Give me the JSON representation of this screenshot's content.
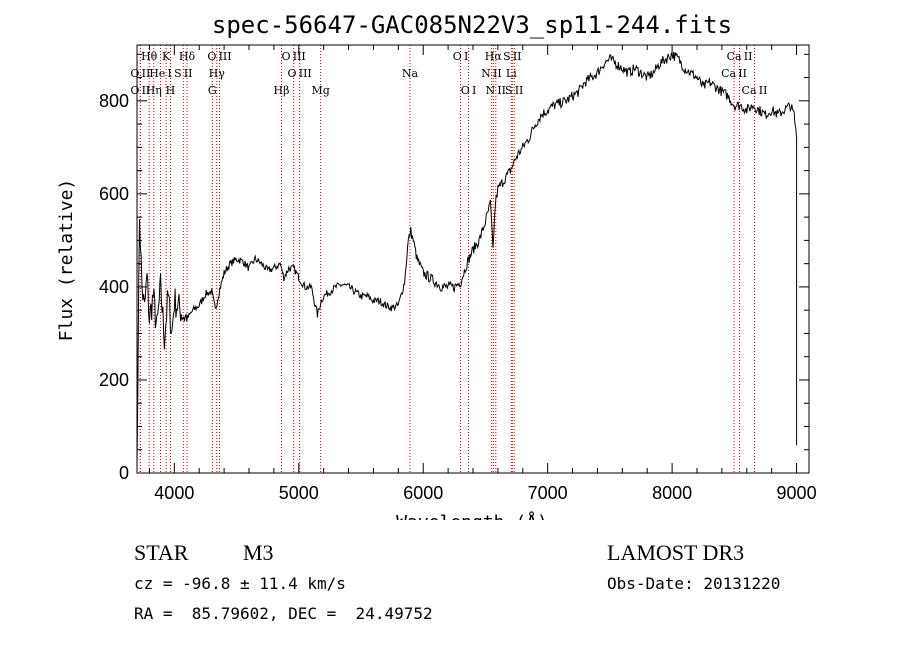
{
  "chart_data": {
    "type": "line",
    "title": "spec-56647-GAC085N22V3_sp11-244.fits",
    "xlabel": "Wavelength (Å)",
    "ylabel": "Flux (relative)",
    "xlim": [
      3700,
      9100
    ],
    "ylim": [
      0,
      920
    ],
    "x_ticks": [
      4000,
      5000,
      6000,
      7000,
      8000,
      9000
    ],
    "y_ticks": [
      0,
      200,
      400,
      600,
      800
    ],
    "series": [
      {
        "name": "spectrum",
        "x": [
          3700,
          3720,
          3740,
          3760,
          3780,
          3800,
          3830,
          3860,
          3890,
          3920,
          3950,
          3980,
          4000,
          4050,
          4100,
          4150,
          4200,
          4250,
          4300,
          4330,
          4360,
          4400,
          4450,
          4500,
          4550,
          4600,
          4650,
          4700,
          4750,
          4800,
          4850,
          4880,
          4920,
          4960,
          5000,
          5050,
          5100,
          5150,
          5180,
          5200,
          5250,
          5300,
          5350,
          5400,
          5450,
          5500,
          5550,
          5600,
          5650,
          5700,
          5750,
          5800,
          5850,
          5880,
          5900,
          5920,
          5950,
          6000,
          6050,
          6100,
          6150,
          6200,
          6250,
          6300,
          6350,
          6400,
          6450,
          6500,
          6540,
          6560,
          6580,
          6600,
          6650,
          6700,
          6750,
          6800,
          6850,
          6900,
          6950,
          7000,
          7050,
          7100,
          7150,
          7200,
          7250,
          7300,
          7350,
          7400,
          7450,
          7500,
          7550,
          7600,
          7650,
          7700,
          7750,
          7800,
          7850,
          7900,
          7950,
          8000,
          8050,
          8100,
          8150,
          8200,
          8250,
          8300,
          8350,
          8400,
          8450,
          8500,
          8550,
          8600,
          8650,
          8700,
          8750,
          8800,
          8850,
          8900,
          8950,
          8980,
          9000
        ],
        "values": [
          20,
          560,
          400,
          350,
          420,
          330,
          380,
          310,
          400,
          290,
          380,
          300,
          370,
          350,
          330,
          350,
          360,
          385,
          390,
          350,
          390,
          430,
          450,
          460,
          455,
          440,
          460,
          450,
          435,
          440,
          450,
          420,
          440,
          440,
          420,
          400,
          400,
          340,
          370,
          380,
          390,
          400,
          405,
          400,
          390,
          380,
          380,
          370,
          370,
          360,
          355,
          360,
          410,
          500,
          520,
          500,
          460,
          430,
          420,
          410,
          400,
          400,
          400,
          410,
          450,
          480,
          500,
          540,
          580,
          480,
          580,
          610,
          630,
          650,
          680,
          700,
          720,
          750,
          770,
          780,
          790,
          795,
          800,
          810,
          820,
          840,
          850,
          860,
          880,
          890,
          880,
          870,
          860,
          870,
          860,
          850,
          860,
          880,
          890,
          900,
          890,
          870,
          860,
          850,
          830,
          840,
          830,
          820,
          810,
          790,
          790,
          780,
          790,
          780,
          770,
          780,
          770,
          780,
          790,
          770,
          720
        ]
      }
    ],
    "emission_lines": [
      {
        "label": "O II",
        "wavelength": 3727,
        "row": 2
      },
      {
        "label": "Hθ",
        "wavelength": 3798,
        "row": 0
      },
      {
        "label": "O II",
        "wavelength": 3727,
        "row": 1
      },
      {
        "label": "Hη",
        "wavelength": 3835,
        "row": 2
      },
      {
        "label": "K",
        "wavelength": 3934,
        "row": 0
      },
      {
        "label": "He I",
        "wavelength": 3889,
        "row": 1
      },
      {
        "label": "S II",
        "wavelength": 4072,
        "row": 1
      },
      {
        "label": "H",
        "wavelength": 3969,
        "row": 2
      },
      {
        "label": "Hδ",
        "wavelength": 4102,
        "row": 0
      },
      {
        "label": "O III",
        "wavelength": 4363,
        "row": 0
      },
      {
        "label": "Hγ",
        "wavelength": 4341,
        "row": 1
      },
      {
        "label": "G",
        "wavelength": 4305,
        "row": 2
      },
      {
        "label": "O III",
        "wavelength": 4959,
        "row": 0
      },
      {
        "label": "O III",
        "wavelength": 5007,
        "row": 1
      },
      {
        "label": "Hβ",
        "wavelength": 4861,
        "row": 2
      },
      {
        "label": "Mg",
        "wavelength": 5176,
        "row": 2
      },
      {
        "label": "Na",
        "wavelength": 5893,
        "row": 1
      },
      {
        "label": "O I",
        "wavelength": 6300,
        "row": 0
      },
      {
        "label": "O I",
        "wavelength": 6364,
        "row": 2
      },
      {
        "label": "Hα",
        "wavelength": 6563,
        "row": 0
      },
      {
        "label": "S II",
        "wavelength": 6716,
        "row": 0
      },
      {
        "label": "N II",
        "wavelength": 6548,
        "row": 1
      },
      {
        "label": "Li",
        "wavelength": 6708,
        "row": 1
      },
      {
        "label": "N II",
        "wavelength": 6583,
        "row": 2
      },
      {
        "label": "S II",
        "wavelength": 6731,
        "row": 2
      },
      {
        "label": "Ca II",
        "wavelength": 8542,
        "row": 0
      },
      {
        "label": "Ca II",
        "wavelength": 8498,
        "row": 1
      },
      {
        "label": "Ca II",
        "wavelength": 8662,
        "row": 2
      }
    ]
  },
  "info": {
    "object_class": "STAR",
    "subclass": "M3",
    "survey": "LAMOST DR3",
    "velocity": "cz = -96.8 ± 11.4 km/s",
    "obs_date": "Obs-Date: 20131220",
    "coords": "RA =  85.79602, DEC =  24.49752"
  },
  "colors": {
    "line_marker": "#cc0000",
    "spectrum": "#000000"
  }
}
